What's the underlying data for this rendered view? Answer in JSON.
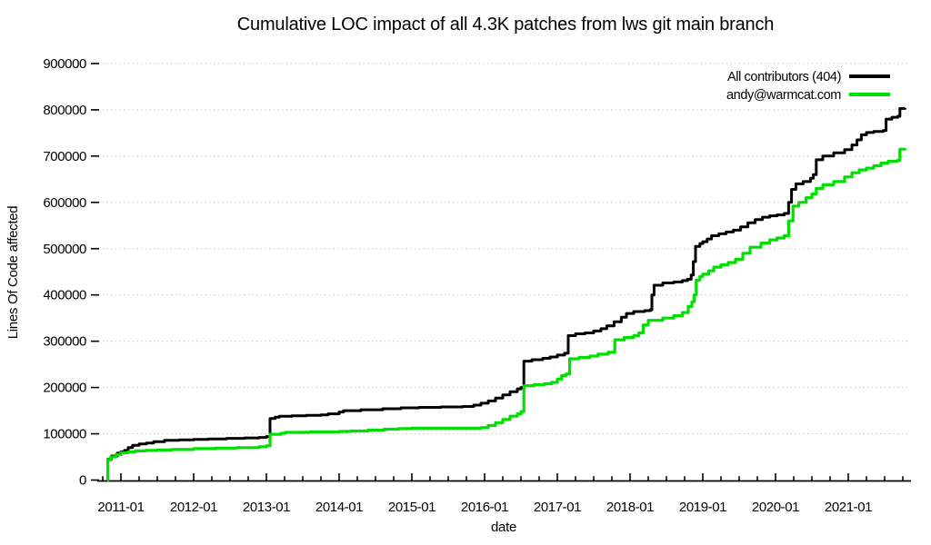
{
  "title": "Cumulative LOC impact of all 4.3K patches from lws git main branch",
  "axes": {
    "x": {
      "label": "date",
      "tick_labels": [
        "2011-01",
        "2012-01",
        "2013-01",
        "2014-01",
        "2015-01",
        "2016-01",
        "2017-01",
        "2018-01",
        "2019-01",
        "2020-01",
        "2021-01"
      ],
      "tick_years": [
        2011,
        2012,
        2013,
        2014,
        2015,
        2016,
        2017,
        2018,
        2019,
        2020,
        2021
      ],
      "minor_tick_interval_years": 0.25,
      "range_years": [
        2010.67,
        2021.85
      ]
    },
    "y": {
      "label": "Lines Of Code affected",
      "tick_labels": [
        "0",
        "100000",
        "200000",
        "300000",
        "400000",
        "500000",
        "600000",
        "700000",
        "800000",
        "900000"
      ],
      "tick_values": [
        0,
        100000,
        200000,
        300000,
        400000,
        500000,
        600000,
        700000,
        800000,
        900000
      ],
      "range": [
        0,
        900000
      ]
    }
  },
  "colors": {
    "all_contributors": "#000000",
    "andy": "#00e000",
    "grid": "#c6c6c6",
    "background": "#ffffff"
  },
  "chart_data": {
    "type": "line",
    "interpolation": "step-after",
    "title": "Cumulative LOC impact of all 4.3K patches from lws git main branch",
    "xlabel": "date",
    "ylabel": "Lines Of Code affected",
    "xlim_years": [
      2010.67,
      2021.85
    ],
    "ylim": [
      0,
      900000
    ],
    "grid": "horizontal-dotted",
    "legend_position": "top-right-inside",
    "x_unit": "decimal_year",
    "series": [
      {
        "name": "All contributors (404)",
        "color": "#000000",
        "points": [
          [
            2010.81,
            0
          ],
          [
            2010.82,
            45000
          ],
          [
            2010.87,
            52000
          ],
          [
            2010.95,
            58000
          ],
          [
            2011.0,
            61000
          ],
          [
            2011.05,
            64000
          ],
          [
            2011.1,
            70000
          ],
          [
            2011.16,
            75000
          ],
          [
            2011.25,
            78000
          ],
          [
            2011.35,
            80000
          ],
          [
            2011.45,
            83000
          ],
          [
            2011.6,
            86000
          ],
          [
            2011.8,
            87000
          ],
          [
            2012.0,
            88000
          ],
          [
            2012.2,
            89000
          ],
          [
            2012.45,
            90000
          ],
          [
            2012.7,
            91000
          ],
          [
            2012.9,
            92000
          ],
          [
            2013.0,
            94000
          ],
          [
            2013.05,
            133000
          ],
          [
            2013.12,
            136000
          ],
          [
            2013.18,
            138000
          ],
          [
            2013.35,
            139000
          ],
          [
            2013.55,
            140000
          ],
          [
            2013.75,
            141000
          ],
          [
            2013.85,
            143000
          ],
          [
            2014.0,
            147000
          ],
          [
            2014.06,
            150000
          ],
          [
            2014.3,
            152000
          ],
          [
            2014.6,
            154000
          ],
          [
            2014.85,
            156000
          ],
          [
            2015.1,
            157000
          ],
          [
            2015.4,
            158000
          ],
          [
            2015.7,
            159000
          ],
          [
            2015.85,
            162000
          ],
          [
            2015.95,
            166000
          ],
          [
            2016.05,
            171000
          ],
          [
            2016.15,
            177000
          ],
          [
            2016.25,
            184000
          ],
          [
            2016.35,
            191000
          ],
          [
            2016.45,
            197000
          ],
          [
            2016.5,
            200000
          ],
          [
            2016.54,
            257000
          ],
          [
            2016.65,
            260000
          ],
          [
            2016.8,
            263000
          ],
          [
            2016.9,
            266000
          ],
          [
            2017.0,
            270000
          ],
          [
            2017.1,
            274000
          ],
          [
            2017.15,
            312000
          ],
          [
            2017.25,
            316000
          ],
          [
            2017.38,
            318000
          ],
          [
            2017.5,
            322000
          ],
          [
            2017.6,
            327000
          ],
          [
            2017.68,
            333000
          ],
          [
            2017.78,
            342000
          ],
          [
            2017.88,
            352000
          ],
          [
            2017.95,
            360000
          ],
          [
            2018.05,
            364000
          ],
          [
            2018.2,
            366000
          ],
          [
            2018.28,
            368000
          ],
          [
            2018.3,
            400000
          ],
          [
            2018.33,
            421000
          ],
          [
            2018.45,
            426000
          ],
          [
            2018.6,
            428000
          ],
          [
            2018.72,
            431000
          ],
          [
            2018.79,
            434000
          ],
          [
            2018.84,
            443000
          ],
          [
            2018.87,
            472000
          ],
          [
            2018.9,
            505000
          ],
          [
            2018.96,
            511000
          ],
          [
            2019.0,
            515000
          ],
          [
            2019.06,
            521000
          ],
          [
            2019.12,
            528000
          ],
          [
            2019.22,
            532000
          ],
          [
            2019.32,
            536000
          ],
          [
            2019.42,
            540000
          ],
          [
            2019.52,
            547000
          ],
          [
            2019.62,
            556000
          ],
          [
            2019.72,
            563000
          ],
          [
            2019.82,
            568000
          ],
          [
            2019.92,
            571000
          ],
          [
            2020.02,
            573000
          ],
          [
            2020.12,
            576000
          ],
          [
            2020.18,
            600000
          ],
          [
            2020.22,
            628000
          ],
          [
            2020.28,
            640000
          ],
          [
            2020.38,
            645000
          ],
          [
            2020.48,
            652000
          ],
          [
            2020.52,
            660000
          ],
          [
            2020.56,
            692000
          ],
          [
            2020.65,
            700000
          ],
          [
            2020.8,
            707000
          ],
          [
            2020.95,
            714000
          ],
          [
            2021.05,
            724000
          ],
          [
            2021.12,
            735000
          ],
          [
            2021.18,
            746000
          ],
          [
            2021.25,
            751000
          ],
          [
            2021.35,
            753000
          ],
          [
            2021.48,
            755000
          ],
          [
            2021.52,
            780000
          ],
          [
            2021.6,
            784000
          ],
          [
            2021.68,
            786000
          ],
          [
            2021.71,
            803000
          ],
          [
            2021.78,
            804000
          ]
        ]
      },
      {
        "name": "andy@warmcat.com",
        "color": "#00e000",
        "points": [
          [
            2010.81,
            0
          ],
          [
            2010.82,
            44000
          ],
          [
            2010.86,
            50000
          ],
          [
            2010.93,
            55000
          ],
          [
            2011.0,
            59000
          ],
          [
            2011.1,
            61000
          ],
          [
            2011.2,
            63000
          ],
          [
            2011.35,
            64000
          ],
          [
            2011.5,
            65000
          ],
          [
            2011.7,
            66000
          ],
          [
            2012.0,
            68000
          ],
          [
            2012.3,
            69000
          ],
          [
            2012.6,
            70000
          ],
          [
            2012.9,
            72000
          ],
          [
            2013.0,
            74000
          ],
          [
            2013.05,
            99000
          ],
          [
            2013.2,
            101000
          ],
          [
            2013.26,
            103000
          ],
          [
            2013.6,
            104000
          ],
          [
            2014.0,
            105000
          ],
          [
            2014.16,
            106000
          ],
          [
            2014.4,
            108000
          ],
          [
            2014.62,
            110000
          ],
          [
            2014.82,
            111000
          ],
          [
            2015.0,
            112000
          ],
          [
            2015.45,
            112000
          ],
          [
            2015.95,
            113000
          ],
          [
            2016.05,
            118000
          ],
          [
            2016.15,
            124000
          ],
          [
            2016.25,
            131000
          ],
          [
            2016.35,
            138000
          ],
          [
            2016.45,
            143000
          ],
          [
            2016.5,
            148000
          ],
          [
            2016.54,
            204000
          ],
          [
            2016.68,
            206000
          ],
          [
            2016.82,
            208000
          ],
          [
            2016.92,
            211000
          ],
          [
            2017.0,
            218000
          ],
          [
            2017.06,
            226000
          ],
          [
            2017.12,
            229000
          ],
          [
            2017.17,
            262000
          ],
          [
            2017.3,
            265000
          ],
          [
            2017.45,
            268000
          ],
          [
            2017.56,
            272000
          ],
          [
            2017.7,
            276000
          ],
          [
            2017.79,
            303000
          ],
          [
            2017.92,
            308000
          ],
          [
            2018.05,
            312000
          ],
          [
            2018.12,
            318000
          ],
          [
            2018.18,
            335000
          ],
          [
            2018.25,
            345000
          ],
          [
            2018.45,
            350000
          ],
          [
            2018.6,
            355000
          ],
          [
            2018.72,
            362000
          ],
          [
            2018.8,
            375000
          ],
          [
            2018.85,
            385000
          ],
          [
            2018.88,
            400000
          ],
          [
            2018.91,
            432000
          ],
          [
            2018.96,
            440000
          ],
          [
            2019.0,
            445000
          ],
          [
            2019.08,
            452000
          ],
          [
            2019.15,
            460000
          ],
          [
            2019.25,
            465000
          ],
          [
            2019.35,
            470000
          ],
          [
            2019.45,
            477000
          ],
          [
            2019.55,
            490000
          ],
          [
            2019.65,
            503000
          ],
          [
            2019.8,
            512000
          ],
          [
            2019.92,
            519000
          ],
          [
            2020.02,
            523000
          ],
          [
            2020.12,
            528000
          ],
          [
            2020.18,
            560000
          ],
          [
            2020.24,
            592000
          ],
          [
            2020.32,
            600000
          ],
          [
            2020.42,
            610000
          ],
          [
            2020.5,
            618000
          ],
          [
            2020.56,
            630000
          ],
          [
            2020.65,
            638000
          ],
          [
            2020.8,
            645000
          ],
          [
            2020.95,
            655000
          ],
          [
            2021.05,
            664000
          ],
          [
            2021.15,
            670000
          ],
          [
            2021.25,
            674000
          ],
          [
            2021.35,
            679000
          ],
          [
            2021.45,
            685000
          ],
          [
            2021.55,
            689000
          ],
          [
            2021.68,
            691000
          ],
          [
            2021.71,
            715000
          ],
          [
            2021.78,
            717000
          ]
        ]
      }
    ]
  }
}
